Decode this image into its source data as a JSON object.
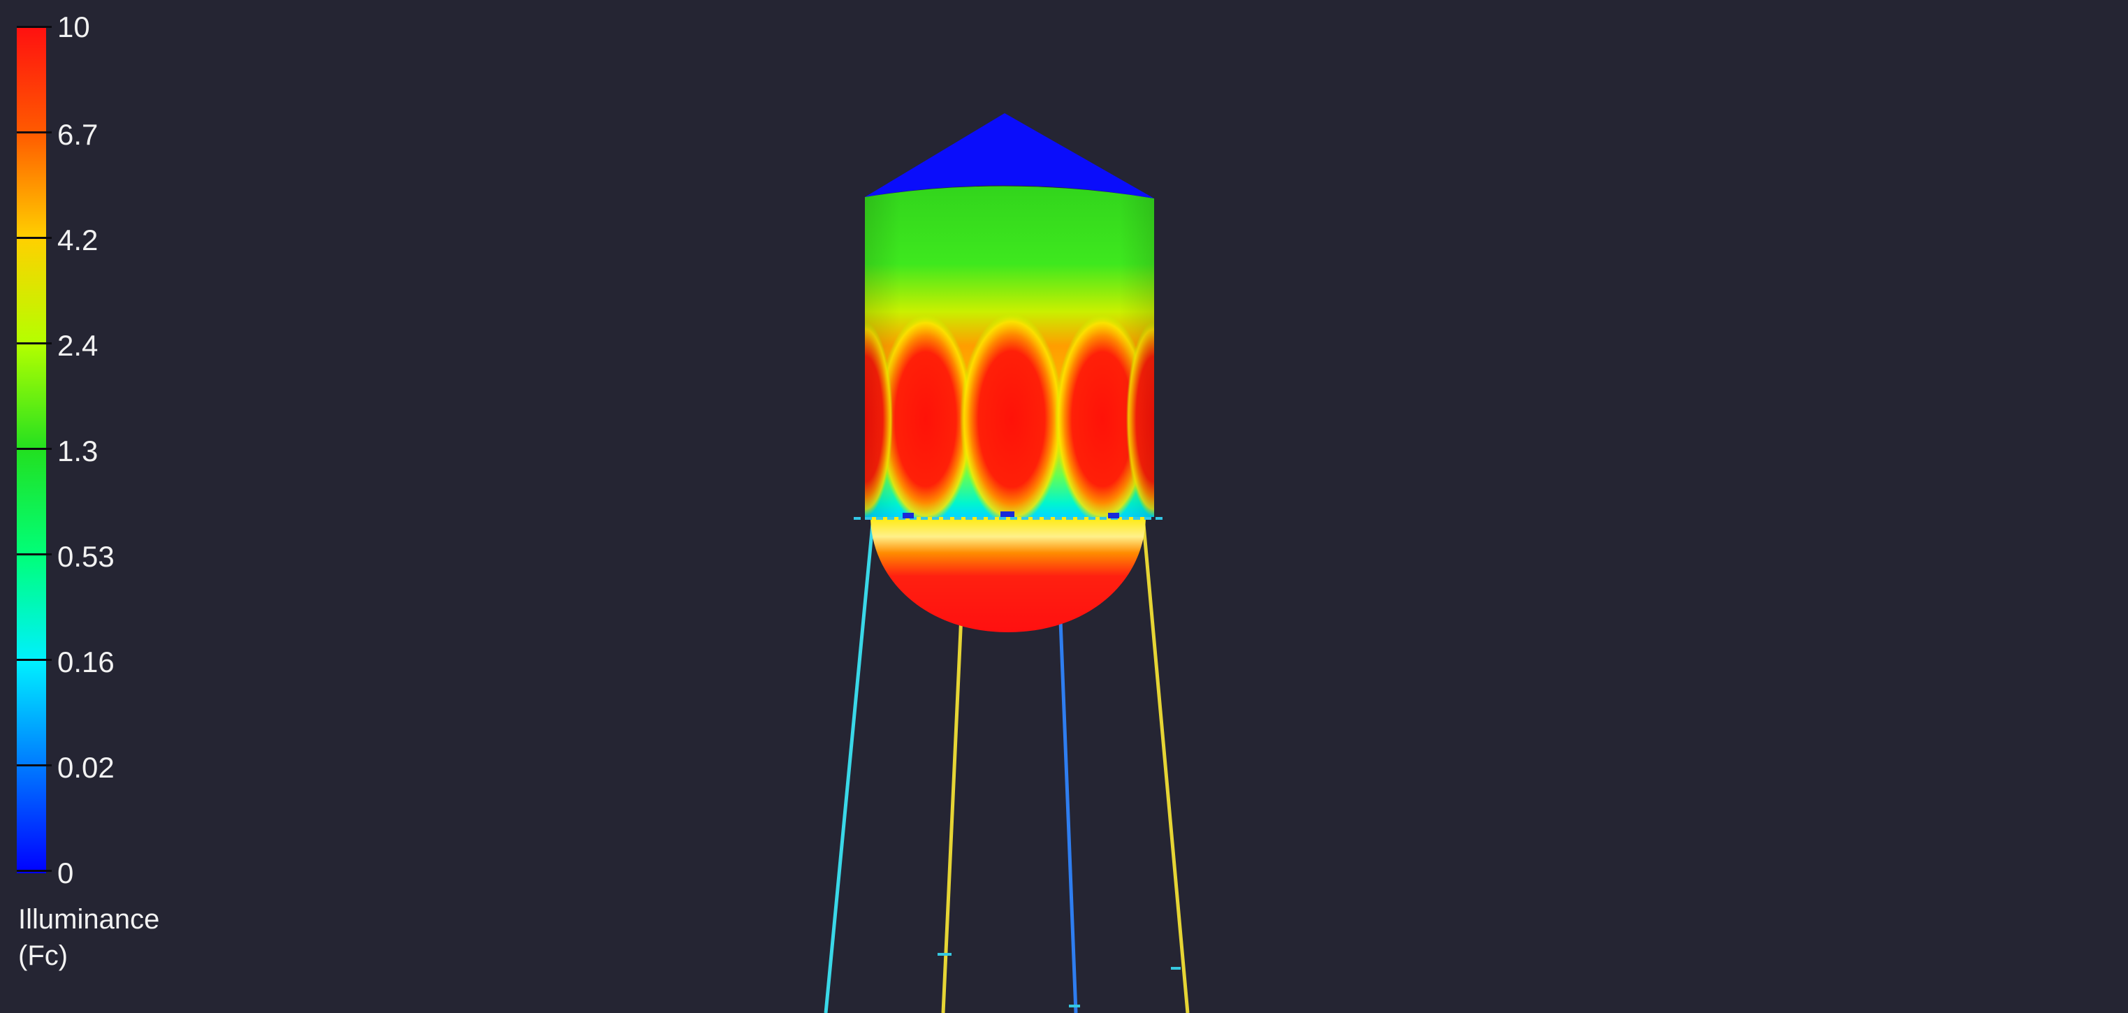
{
  "legend": {
    "ticks": [
      "10",
      "6.7",
      "4.2",
      "2.4",
      "1.3",
      "0.53",
      "0.16",
      "0.02",
      "0"
    ],
    "title_line1": "Illuminance",
    "title_line2": "(Fc)",
    "colors": {
      "max": "#ff1010",
      "high": "#ff5a00",
      "mid_high": "#ffd000",
      "mid": "#22e020",
      "low": "#00f0ff",
      "min": "#0000ff"
    }
  },
  "scene": {
    "background": "#252533"
  }
}
